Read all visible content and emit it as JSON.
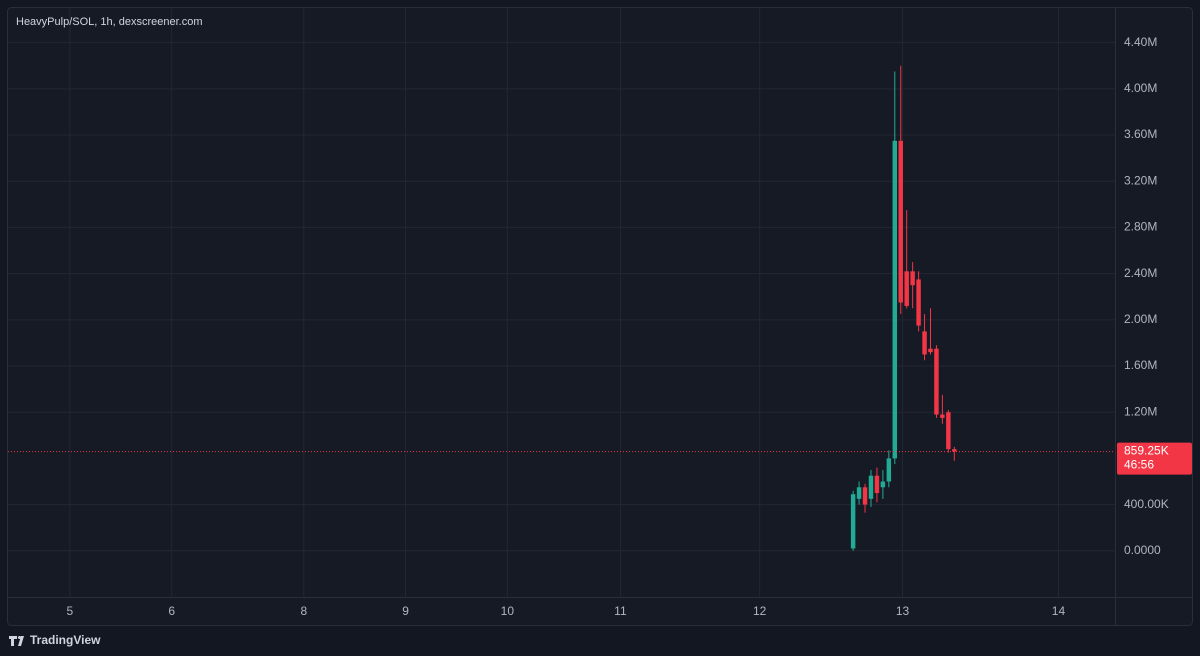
{
  "header": "HeavyPulp/SOL, 1h, dexscreener.com",
  "footer": "TradingView",
  "chart_data": {
    "type": "candlestick",
    "x": [
      142,
      143,
      144,
      145,
      146,
      147,
      148,
      149,
      150,
      151,
      152,
      153,
      154,
      155,
      156,
      157,
      158,
      159
    ],
    "open": [
      20000,
      450000,
      550000,
      450000,
      650000,
      550000,
      600000,
      800000,
      3550000,
      2420000,
      2420000,
      2350000,
      1900000,
      1750000,
      1750000,
      1180000,
      1200000,
      880000
    ],
    "high": [
      520000,
      600000,
      580000,
      700000,
      720000,
      700000,
      870000,
      4150000,
      4200000,
      2950000,
      2500000,
      2420000,
      2050000,
      2100000,
      1780000,
      1350000,
      1220000,
      900000
    ],
    "low": [
      0,
      400000,
      330000,
      380000,
      420000,
      450000,
      550000,
      750000,
      2050000,
      2100000,
      2100000,
      1900000,
      1650000,
      1700000,
      1150000,
      1100000,
      850000,
      780000
    ],
    "close": [
      490000,
      550000,
      400000,
      650000,
      500000,
      600000,
      800000,
      3550000,
      2150000,
      2120000,
      2300000,
      1950000,
      1700000,
      1720000,
      1180000,
      1150000,
      880000,
      860000
    ],
    "up_color": "#22ab94",
    "down_color": "#f23645",
    "xlim": [
      0,
      186
    ],
    "xticks": [
      {
        "value": 10.4,
        "label": "5"
      },
      {
        "value": 27.5,
        "label": "6"
      },
      {
        "value": 49.7,
        "label": "8"
      },
      {
        "value": 66.8,
        "label": "9"
      },
      {
        "value": 83.9,
        "label": "10"
      },
      {
        "value": 102.9,
        "label": "11"
      },
      {
        "value": 126.3,
        "label": "12"
      },
      {
        "value": 150.3,
        "label": "13"
      },
      {
        "value": 176.5,
        "label": "14"
      }
    ],
    "ylim": [
      -400000,
      4700000
    ],
    "yticks": [
      {
        "value": 0,
        "label": "0.0000"
      },
      {
        "value": 400000,
        "label": "400.00K"
      },
      {
        "value": 1200000,
        "label": "1.20M"
      },
      {
        "value": 1600000,
        "label": "1.60M"
      },
      {
        "value": 2000000,
        "label": "2.00M"
      },
      {
        "value": 2400000,
        "label": "2.40M"
      },
      {
        "value": 2800000,
        "label": "2.80M"
      },
      {
        "value": 3200000,
        "label": "3.20M"
      },
      {
        "value": 3600000,
        "label": "3.60M"
      },
      {
        "value": 4000000,
        "label": "4.00M"
      },
      {
        "value": 4400000,
        "label": "4.40M"
      }
    ],
    "grid": true,
    "last_price": {
      "value": 859250,
      "label": "859.25K"
    },
    "countdown": "46:56"
  }
}
